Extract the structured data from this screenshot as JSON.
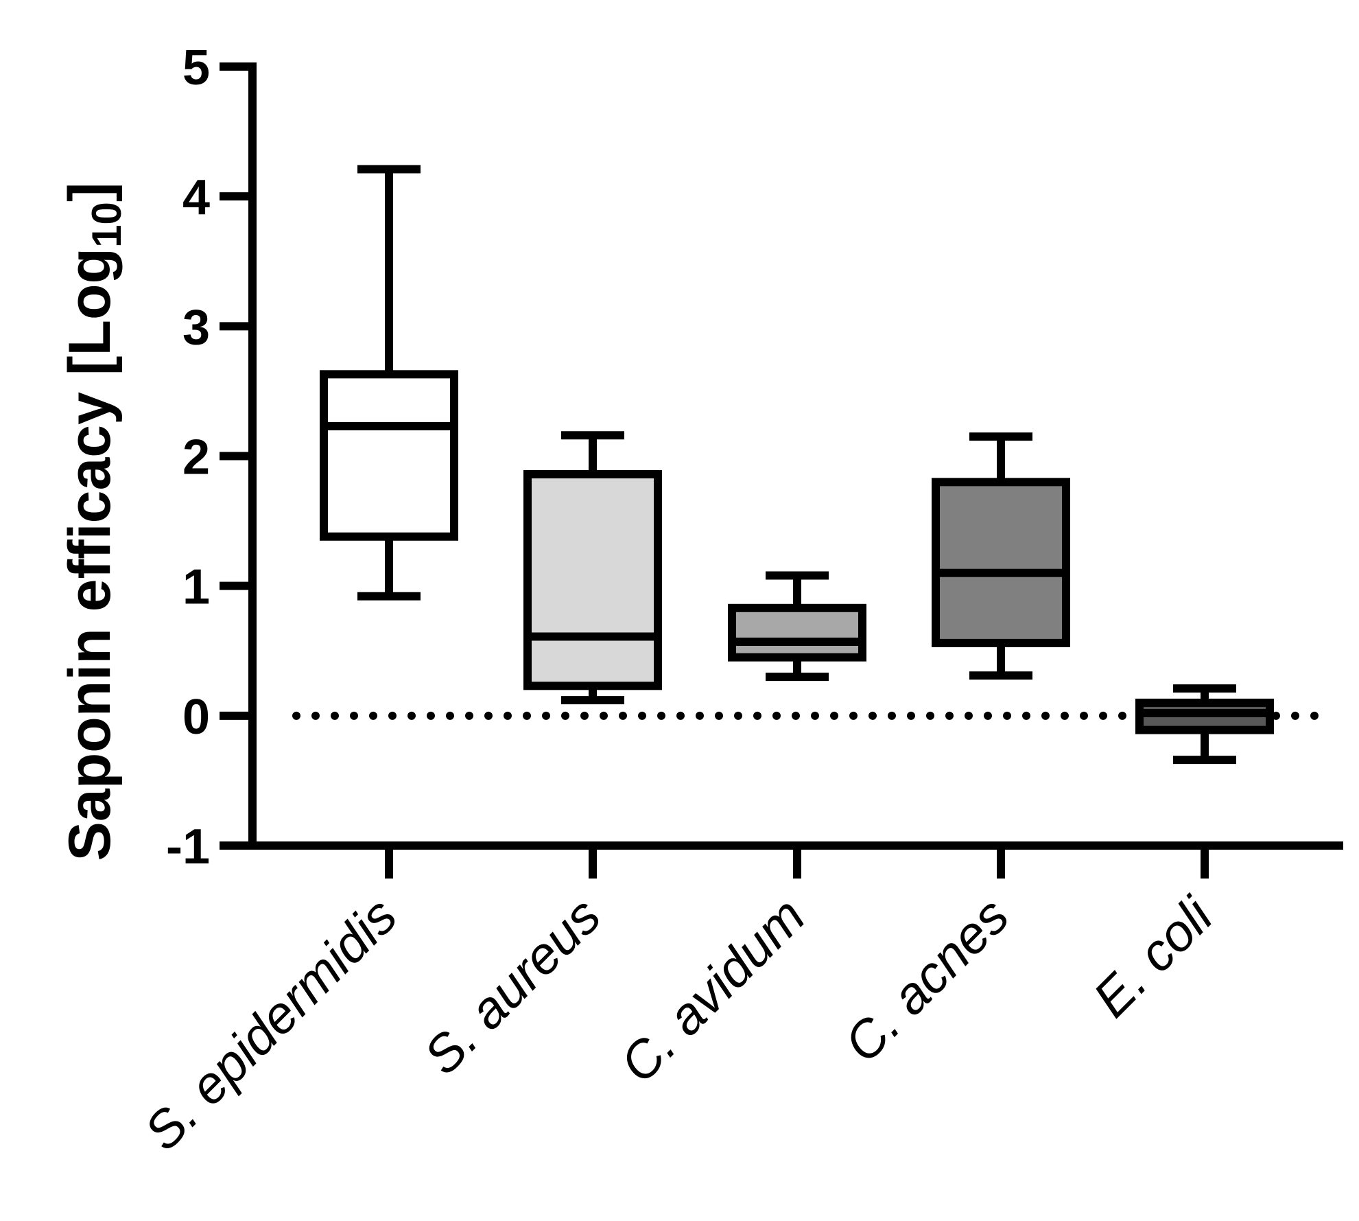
{
  "chart_data": {
    "type": "boxplot",
    "title": "",
    "xlabel": "",
    "ylabel": {
      "prefix": "Saponin efficacy [Log",
      "subscript": "10",
      "suffix": "]"
    },
    "ylim": [
      -1,
      5
    ],
    "yticks": [
      "-1",
      "0",
      "1",
      "2",
      "3",
      "4",
      "5"
    ],
    "reference_line": {
      "y": 0,
      "style": "dotted"
    },
    "categories": [
      "S. epidermidis",
      "S. aureus",
      "C. avidum",
      "C. acnes",
      "E. coli"
    ],
    "boxes": [
      {
        "name": "S. epidermidis",
        "min": 0.92,
        "q1": 1.38,
        "median": 2.23,
        "q3": 2.63,
        "max": 4.21,
        "fill": "#ffffff"
      },
      {
        "name": "S. aureus",
        "min": 0.12,
        "q1": 0.23,
        "median": 0.61,
        "q3": 1.86,
        "max": 2.16,
        "fill": "#d8d8d8"
      },
      {
        "name": "C. avidum",
        "min": 0.3,
        "q1": 0.45,
        "median": 0.57,
        "q3": 0.83,
        "max": 1.08,
        "fill": "#a8a8a8"
      },
      {
        "name": "C. acnes",
        "min": 0.31,
        "q1": 0.56,
        "median": 1.1,
        "q3": 1.8,
        "max": 2.15,
        "fill": "#808080"
      },
      {
        "name": "E. coli",
        "min": -0.34,
        "q1": -0.11,
        "median": 0.02,
        "q3": 0.1,
        "max": 0.21,
        "fill": "#585858"
      }
    ],
    "colors": {
      "axis": "#000000",
      "stroke": "#000000"
    }
  }
}
